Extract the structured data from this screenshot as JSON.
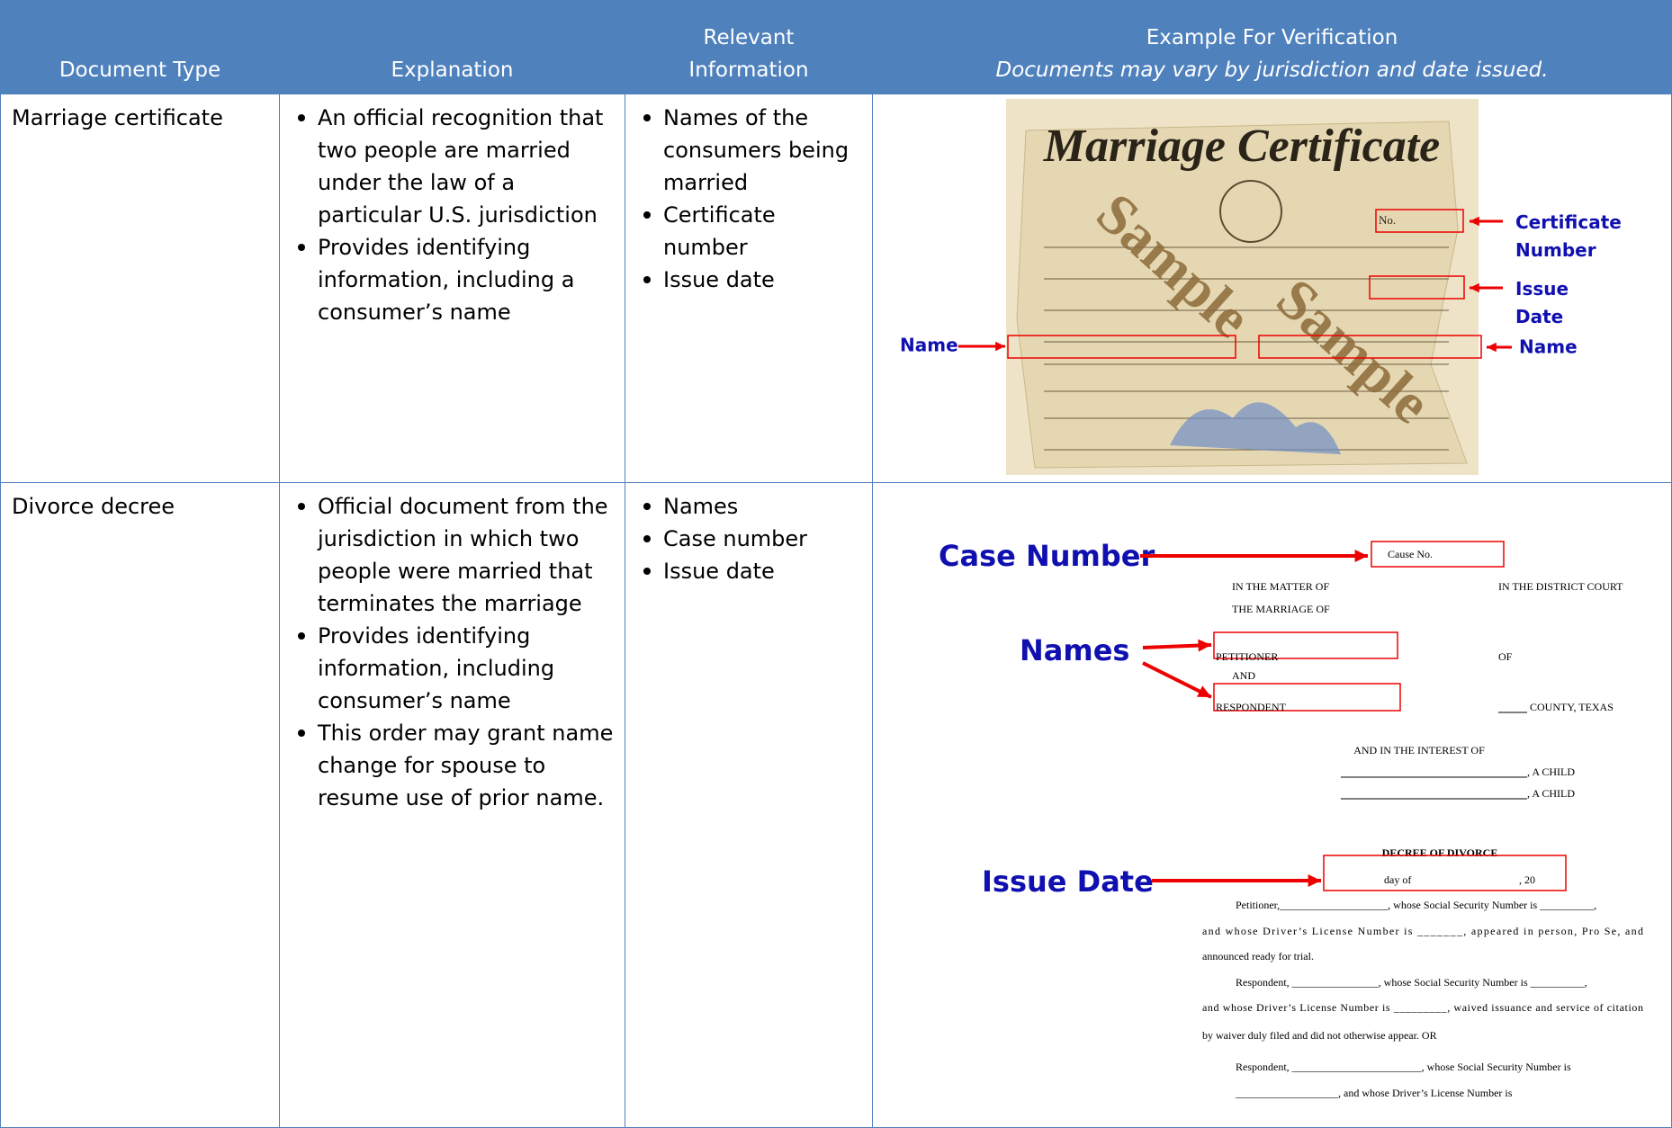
{
  "header": {
    "document_type": "Document Type",
    "explanation": "Explanation",
    "relevant_information": "Relevant Information",
    "example_title": "Example For Verification",
    "example_note": "Documents may vary by jurisdiction and date issued."
  },
  "rows": [
    {
      "document_type": "Marriage certificate",
      "explanation": [
        "An official recognition that two people are married under the law of a particular U.S. jurisdiction",
        "Provides identifying information, including a consumer’s name"
      ],
      "relevant_information": [
        "Names of the consumers being married",
        "Certificate number",
        "Issue date"
      ],
      "example": {
        "title": "Marriage Certificate",
        "watermarks": [
          "Sample",
          "Sample"
        ],
        "number_field": "No.",
        "annotations": {
          "certificate_number": "Certificate Number",
          "issue_date": "Issue Date",
          "name_left": "Name",
          "name_right": "Name"
        }
      }
    },
    {
      "document_type": "Divorce decree",
      "explanation": [
        "Official document from the jurisdiction in which two people were married that terminates the marriage",
        "Provides identifying information, including consumer’s name",
        "This order may grant name change for spouse to resume use of prior name."
      ],
      "relevant_information": [
        "Names",
        "Case number",
        "Issue date"
      ],
      "example": {
        "annotations": {
          "case_number": "Case Number",
          "names": "Names",
          "issue_date": "Issue Date"
        },
        "cause_no": "Cause No.",
        "in_the_matter_of": "IN THE MATTER OF",
        "district_court": "IN THE DISTRICT COURT",
        "marriage_of": "THE MARRIAGE OF",
        "petitioner": "PETITIONER",
        "of": "OF",
        "and": "AND",
        "respondent": "RESPONDENT",
        "county": "COUNTY, TEXAS",
        "interest_of": "AND IN THE INTEREST OF",
        "children": ", A CHILD",
        "decree_title": "DECREE OF DIVORCE",
        "day_of": "day of",
        "year": ", 20",
        "body": [
          "Petitioner,____________________, whose Social Security Number is __________,",
          "and whose Driver’s License Number is _______,   appeared in person, Pro Se, and",
          "announced ready for trial.",
          "Respondent, ________________, whose Social Security Number is __________,",
          "and whose Driver’s License Number is _________, waived issuance and service of citation",
          "by waiver duly filed and did not otherwise appear. OR",
          "Respondent, ________________________, whose Social Security Number is",
          "___________________, and whose Driver’s License Number is"
        ]
      }
    }
  ]
}
